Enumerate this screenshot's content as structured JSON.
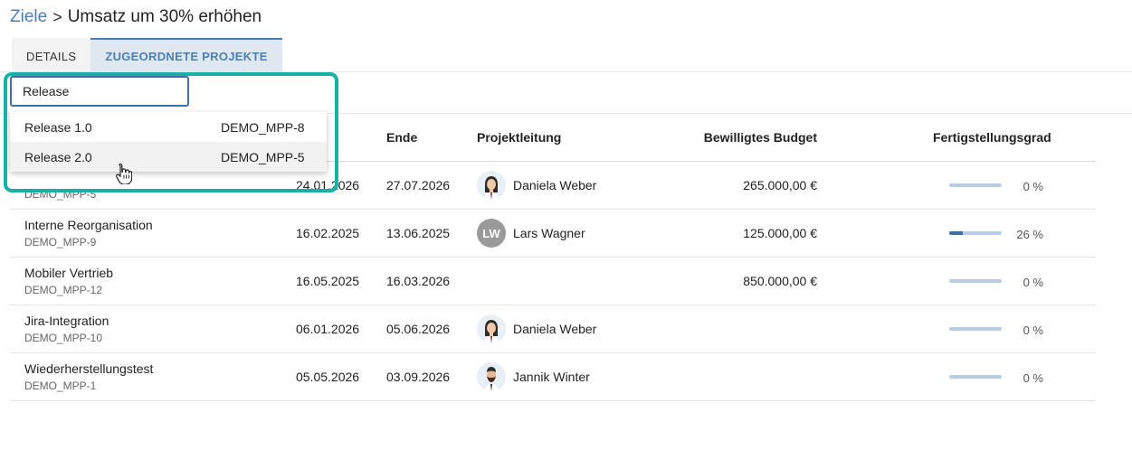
{
  "breadcrumb": {
    "parent": "Ziele",
    "separator": ">",
    "title": "Umsatz um 30% erhöhen"
  },
  "tabs": [
    {
      "label": "DETAILS",
      "active": false
    },
    {
      "label": "ZUGEORDNETE PROJEKTE",
      "active": true
    }
  ],
  "search": {
    "value": "Release"
  },
  "dropdown": {
    "items": [
      {
        "label": "Release 1.0",
        "key": "DEMO_MPP-8"
      },
      {
        "label": "Release 2.0",
        "key": "DEMO_MPP-5"
      }
    ]
  },
  "table": {
    "headers": {
      "end": "Ende",
      "lead": "Projektleitung",
      "budget": "Bewilligtes Budget",
      "progress": "Fertigstellungsgrad"
    },
    "rows": [
      {
        "name": "",
        "key": "DEMO_MPP-5",
        "start": "24.01.2026",
        "end": "27.07.2026",
        "lead": "Daniela Weber",
        "avatar": "female-avatar-icon",
        "budget": "265.000,00 €",
        "progress": 0,
        "percent": "0 %"
      },
      {
        "name": "Interne Reorganisation",
        "key": "DEMO_MPP-9",
        "start": "16.02.2025",
        "end": "13.06.2025",
        "lead": "Lars Wagner",
        "initials": "LW",
        "budget": "125.000,00 €",
        "progress": 0.26,
        "percent": "26 %"
      },
      {
        "name": "Mobiler Vertrieb",
        "key": "DEMO_MPP-12",
        "start": "16.05.2025",
        "end": "16.03.2026",
        "lead": "",
        "budget": "850.000,00 €",
        "progress": 0,
        "percent": "0 %"
      },
      {
        "name": "Jira-Integration",
        "key": "DEMO_MPP-10",
        "start": "06.01.2026",
        "end": "05.06.2026",
        "lead": "Daniela Weber",
        "avatar": "female-avatar-icon",
        "budget": "",
        "progress": 0,
        "percent": "0 %"
      },
      {
        "name": "Wiederherstellungstest",
        "key": "DEMO_MPP-1",
        "start": "05.05.2026",
        "end": "03.09.2026",
        "lead": "Jannik Winter",
        "avatar": "male-avatar-icon",
        "budget": "",
        "progress": 0,
        "percent": "0 %"
      }
    ]
  },
  "colors": {
    "accent": "#4a7fb5",
    "highlight": "#14b1a6",
    "progress_fill": "#3d6fa3",
    "progress_track": "#b9cde2"
  }
}
